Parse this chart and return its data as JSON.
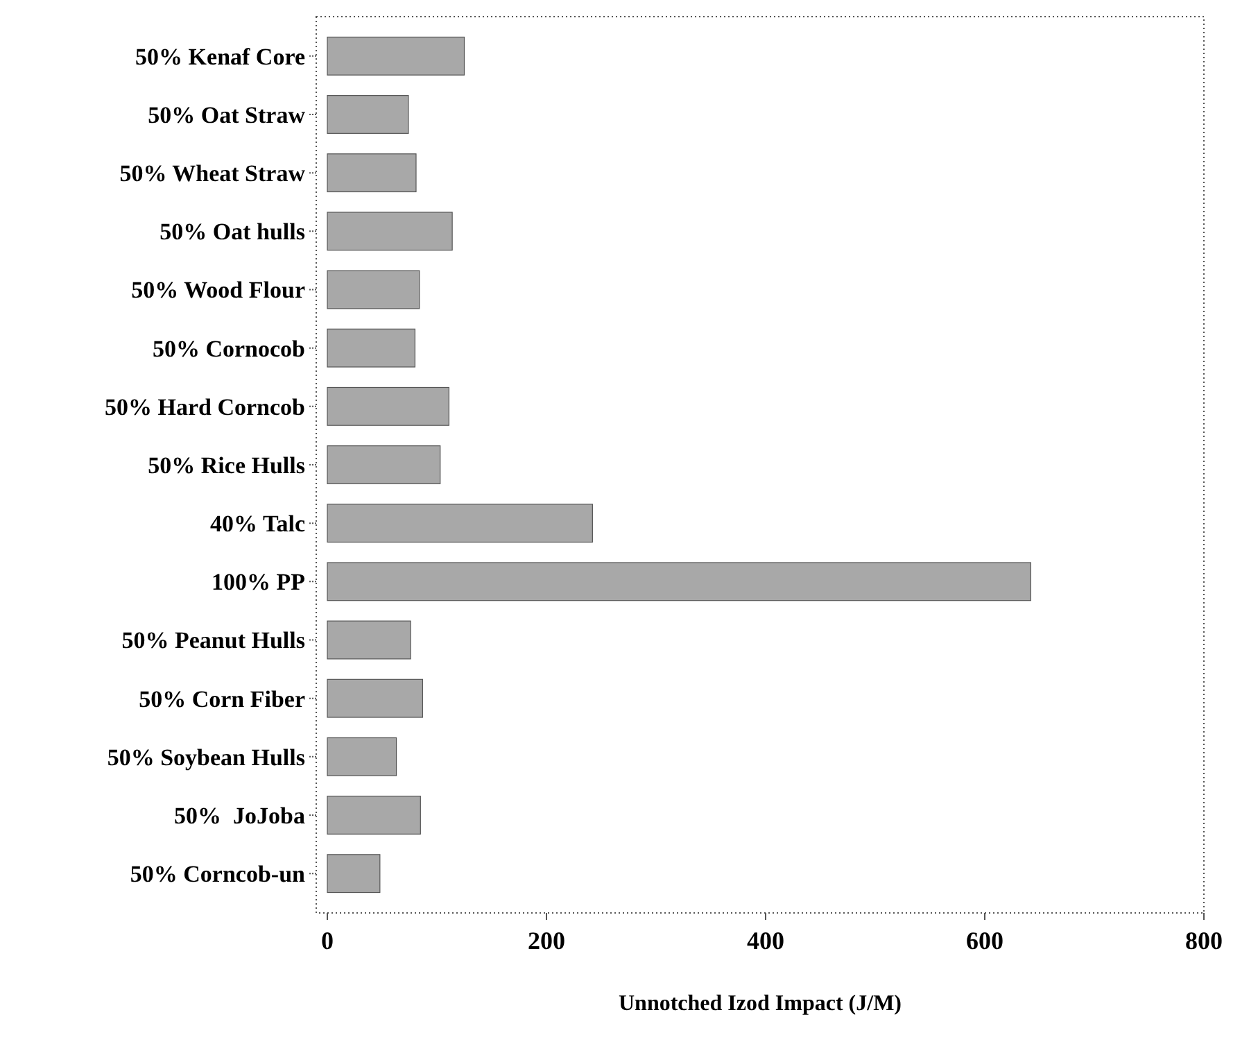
{
  "chart_data": {
    "type": "bar",
    "orientation": "horizontal",
    "xlabel": "Unnotched Izod Impact (J/M)",
    "categories": [
      "50% Kenaf Core",
      "50% Oat Straw",
      "50% Wheat Straw",
      "50% Oat hulls",
      "50% Wood Flour",
      "50% Cornocob",
      "50% Hard Corncob",
      "50% Rice Hulls",
      "40% Talc",
      "100% PP",
      "50% Peanut Hulls",
      "50% Corn Fiber",
      "50% Soybean Hulls",
      "50%  JoJoba",
      "50% Corncob-un"
    ],
    "values": [
      125,
      74,
      81,
      114,
      84,
      80,
      111,
      103,
      242,
      642,
      76,
      87,
      63,
      85,
      48
    ],
    "color": "#a8a8a8",
    "xlim": [
      0,
      800
    ],
    "xticks": [
      0,
      200,
      400,
      600,
      800
    ],
    "grid": false
  }
}
